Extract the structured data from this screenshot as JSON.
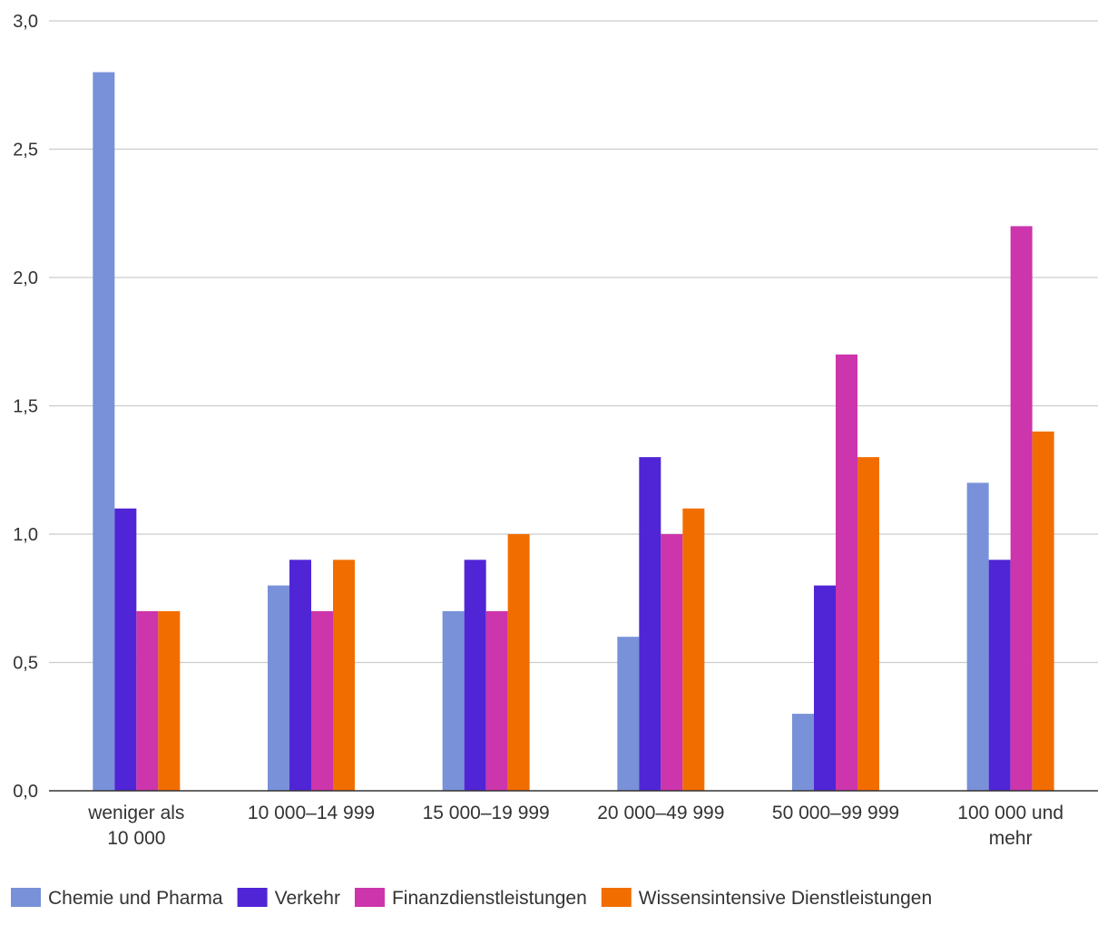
{
  "chart_data": {
    "type": "bar",
    "title": "",
    "xlabel": "",
    "ylabel": "",
    "ylim": [
      0,
      3.0
    ],
    "yticks": [
      "0,0",
      "0,5",
      "1,0",
      "1,5",
      "2,0",
      "2,5",
      "3,0"
    ],
    "ytick_values": [
      0,
      0.5,
      1.0,
      1.5,
      2.0,
      2.5,
      3.0
    ],
    "grid": true,
    "legend_position": "bottom",
    "categories": [
      [
        "weniger als",
        "10 000"
      ],
      [
        "10 000–14 999"
      ],
      [
        "15 000–19 999"
      ],
      [
        "20 000–49 999"
      ],
      [
        "50 000–99 999"
      ],
      [
        "100 000 und",
        "mehr"
      ]
    ],
    "series": [
      {
        "name": "Chemie und Pharma",
        "color": "#7891d8",
        "values": [
          2.8,
          0.8,
          0.7,
          0.6,
          0.3,
          1.2
        ]
      },
      {
        "name": "Verkehr",
        "color": "#5025d6",
        "values": [
          1.1,
          0.9,
          0.9,
          1.3,
          0.8,
          0.9
        ]
      },
      {
        "name": "Finanzdienstleistungen",
        "color": "#cc35ab",
        "values": [
          0.7,
          0.7,
          0.7,
          1.0,
          1.7,
          2.2
        ]
      },
      {
        "name": "Wissensintensive Dienstleistungen",
        "color": "#f26d00",
        "values": [
          0.7,
          0.9,
          1.0,
          1.1,
          1.3,
          1.4
        ]
      }
    ]
  }
}
